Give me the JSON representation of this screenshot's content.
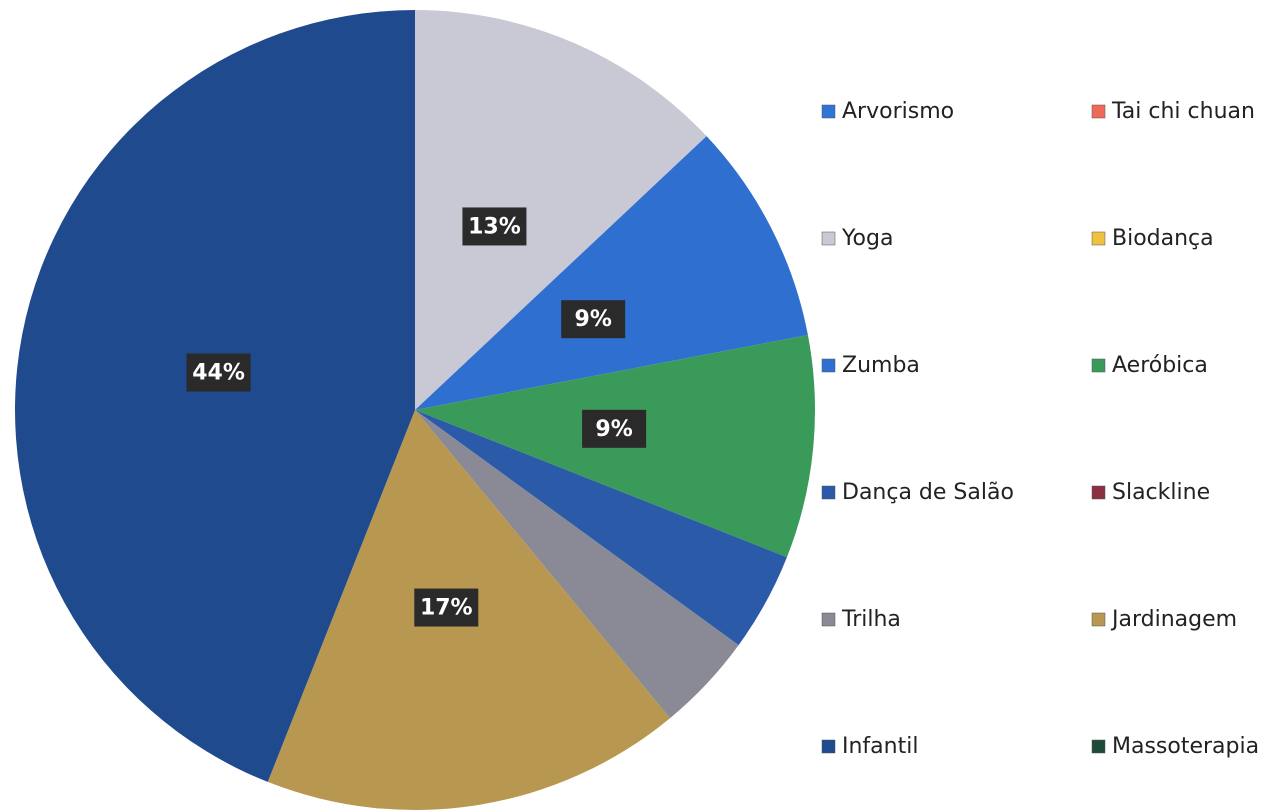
{
  "chart_data": {
    "type": "pie",
    "categories": [
      "Arvorismo",
      "Tai chi chuan",
      "Yoga",
      "Biodança",
      "Zumba",
      "Aeróbica",
      "Dança de Salão",
      "Slackline",
      "Trilha",
      "Jardinagem",
      "Infantil",
      "Massoterapia"
    ],
    "values": [
      0,
      0,
      13,
      0,
      9,
      9,
      4,
      0,
      4,
      17,
      44,
      0
    ],
    "value_labels": [
      null,
      null,
      "13%",
      null,
      "9%",
      "9%",
      null,
      null,
      null,
      "17%",
      "44%",
      null
    ],
    "colors": [
      "#2e75d6",
      "#f06a5a",
      "#c9c9d6",
      "#f0c040",
      "#2f6fd0",
      "#3a9a5a",
      "#2a5aa8",
      "#8a3040",
      "#8a8a96",
      "#b89850",
      "#1f4a8e",
      "#1e4a38"
    ]
  }
}
